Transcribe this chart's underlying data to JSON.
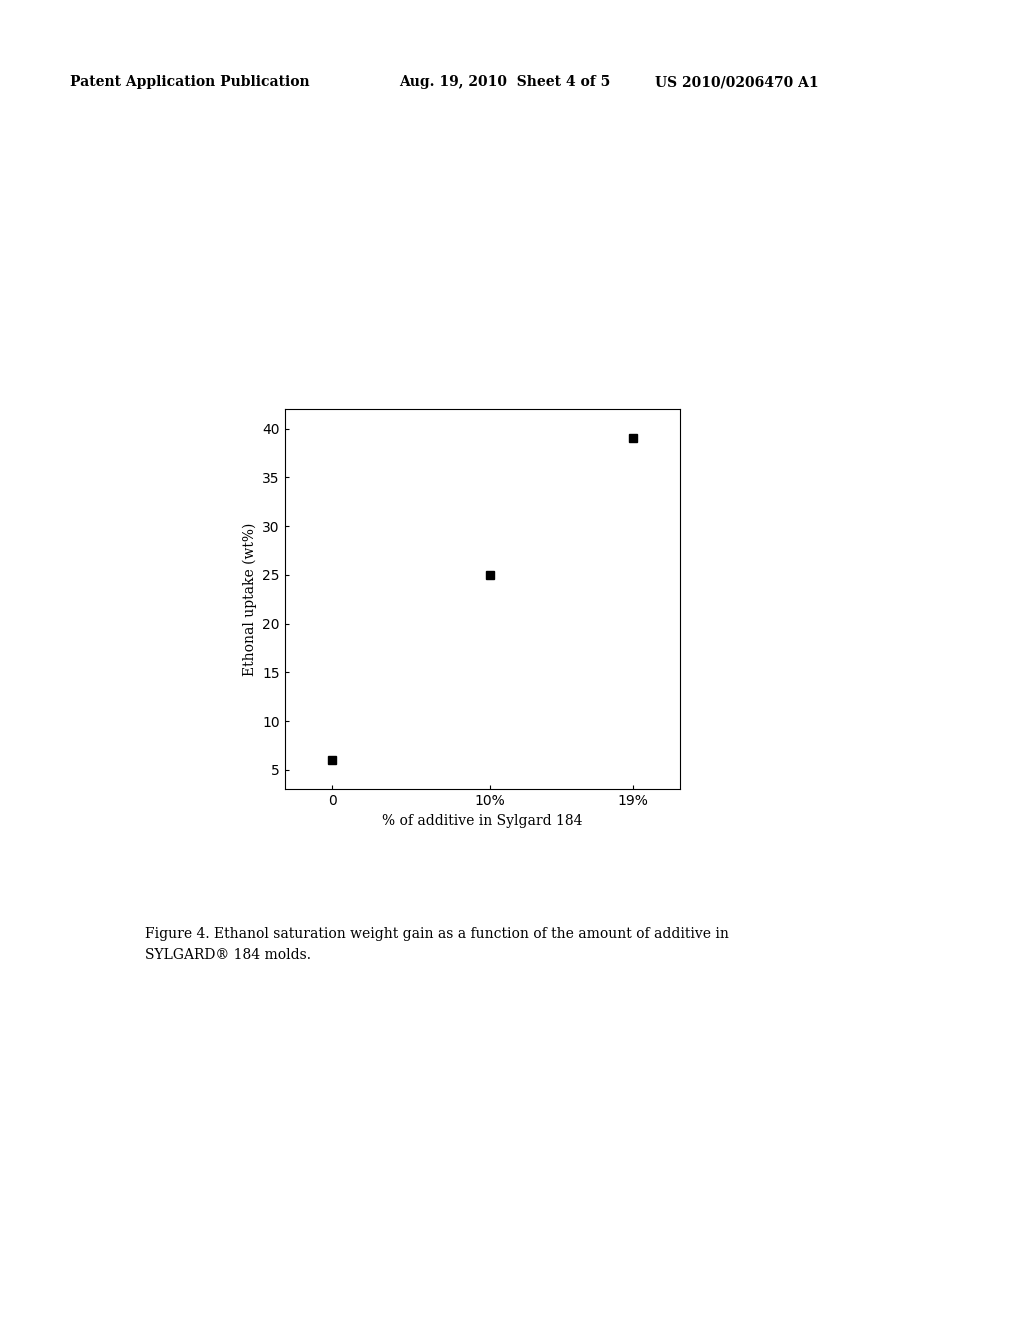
{
  "x_values": [
    0,
    10,
    19
  ],
  "y_values": [
    6,
    25,
    39
  ],
  "x_tick_labels": [
    "0",
    "10%",
    "19%"
  ],
  "ylabel": "Ethonal uptake (wt%)",
  "xlabel": "% of additive in Sylgard 184",
  "ylim": [
    3,
    42
  ],
  "yticks": [
    5,
    10,
    15,
    20,
    25,
    30,
    35,
    40
  ],
  "marker": "s",
  "marker_color": "#000000",
  "marker_size": 6,
  "background_color": "#ffffff",
  "header_left": "Patent Application Publication",
  "header_center": "Aug. 19, 2010  Sheet 4 of 5",
  "header_right": "US 2010/0206470 A1",
  "caption_line1": "Figure 4. Ethanol saturation weight gain as a function of the amount of additive in",
  "caption_line2": "SYLGARD® 184 molds.",
  "axis_fontsize": 10,
  "tick_fontsize": 10,
  "header_fontsize": 10,
  "caption_fontsize": 10
}
